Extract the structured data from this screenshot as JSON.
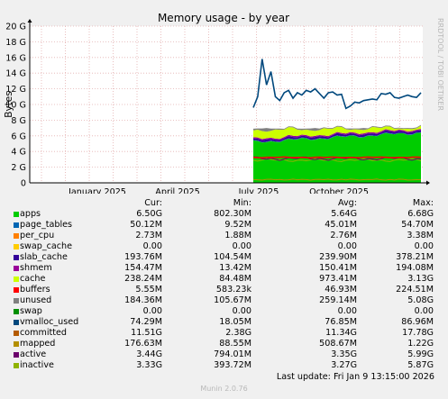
{
  "chart_data": {
    "type": "area",
    "title": "Memory usage - by year",
    "ylabel": "Bytes",
    "side_label": "RRDTOOL / TOBI OETIKER",
    "ylim": [
      0,
      20
    ],
    "yticks": [
      "0",
      "2 G",
      "4 G",
      "6 G",
      "8 G",
      "10 G",
      "12 G",
      "14 G",
      "16 G",
      "18 G",
      "20 G"
    ],
    "xticks": [
      "January 2025",
      "April 2025",
      "July 2025",
      "October 2025"
    ],
    "series": [
      {
        "name": "apps",
        "color": "#00cc00"
      },
      {
        "name": "page_tables",
        "color": "#0066b3"
      },
      {
        "name": "per_cpu",
        "color": "#ff8000"
      },
      {
        "name": "swap_cache",
        "color": "#ffcc00"
      },
      {
        "name": "slab_cache",
        "color": "#330099"
      },
      {
        "name": "shmem",
        "color": "#990099"
      },
      {
        "name": "cache",
        "color": "#ccff00"
      },
      {
        "name": "buffers",
        "color": "#ff0000"
      },
      {
        "name": "unused",
        "color": "#808080"
      },
      {
        "name": "swap",
        "color": "#008f00"
      },
      {
        "name": "vmalloc_used",
        "color": "#00487d"
      },
      {
        "name": "committed",
        "color": "#b35a00"
      },
      {
        "name": "mapped",
        "color": "#b38f00"
      },
      {
        "name": "active",
        "color": "#6b006b"
      },
      {
        "name": "inactive",
        "color": "#8fb300"
      }
    ],
    "committed_line": [
      9.6,
      11.0,
      15.8,
      12.5,
      14.2,
      11.0,
      10.5,
      11.5,
      11.8,
      10.8,
      11.5,
      11.2,
      11.8,
      11.6,
      12.0,
      11.4,
      10.8,
      11.5,
      11.6,
      11.2,
      11.3,
      9.5,
      9.8,
      10.3,
      10.2,
      10.5,
      10.6,
      10.7,
      10.6,
      11.4,
      11.3,
      11.5,
      10.9,
      10.8,
      11.0,
      11.2,
      11.0,
      10.9,
      11.5
    ]
  },
  "legend": {
    "headers": {
      "cur": "Cur:",
      "min": "Min:",
      "avg": "Avg:",
      "max": "Max:"
    },
    "rows": [
      {
        "name": "apps",
        "color": "#00cc00",
        "cur": "6.50G",
        "min": "802.30M",
        "avg": "5.64G",
        "max": "6.68G"
      },
      {
        "name": "page_tables",
        "color": "#0066b3",
        "cur": "50.12M",
        "min": "9.52M",
        "avg": "45.01M",
        "max": "54.70M"
      },
      {
        "name": "per_cpu",
        "color": "#ff8000",
        "cur": "2.73M",
        "min": "1.88M",
        "avg": "2.76M",
        "max": "3.38M"
      },
      {
        "name": "swap_cache",
        "color": "#ffcc00",
        "cur": "0.00",
        "min": "0.00",
        "avg": "0.00",
        "max": "0.00"
      },
      {
        "name": "slab_cache",
        "color": "#330099",
        "cur": "193.76M",
        "min": "104.54M",
        "avg": "239.90M",
        "max": "378.21M"
      },
      {
        "name": "shmem",
        "color": "#990099",
        "cur": "154.47M",
        "min": "13.42M",
        "avg": "150.41M",
        "max": "194.08M"
      },
      {
        "name": "cache",
        "color": "#ccff00",
        "cur": "238.24M",
        "min": "84.48M",
        "avg": "973.41M",
        "max": "3.13G"
      },
      {
        "name": "buffers",
        "color": "#ff0000",
        "cur": "5.55M",
        "min": "583.23k",
        "avg": "46.93M",
        "max": "224.51M"
      },
      {
        "name": "unused",
        "color": "#808080",
        "cur": "184.36M",
        "min": "105.67M",
        "avg": "259.14M",
        "max": "5.08G"
      },
      {
        "name": "swap",
        "color": "#008f00",
        "cur": "0.00",
        "min": "0.00",
        "avg": "0.00",
        "max": "0.00"
      },
      {
        "name": "vmalloc_used",
        "color": "#00487d",
        "cur": "74.29M",
        "min": "18.05M",
        "avg": "76.85M",
        "max": "86.96M"
      },
      {
        "name": "committed",
        "color": "#b35a00",
        "cur": "11.51G",
        "min": "2.38G",
        "avg": "11.34G",
        "max": "17.78G"
      },
      {
        "name": "mapped",
        "color": "#b38f00",
        "cur": "176.63M",
        "min": "88.55M",
        "avg": "508.67M",
        "max": "1.22G"
      },
      {
        "name": "active",
        "color": "#6b006b",
        "cur": "3.44G",
        "min": "794.01M",
        "avg": "3.35G",
        "max": "5.99G"
      },
      {
        "name": "inactive",
        "color": "#8fb300",
        "cur": "3.33G",
        "min": "393.72M",
        "avg": "3.27G",
        "max": "5.87G"
      }
    ]
  },
  "last_update": "Last update:  Fri Jan  9 13:15:00 2026",
  "footer": "Munin 2.0.76"
}
